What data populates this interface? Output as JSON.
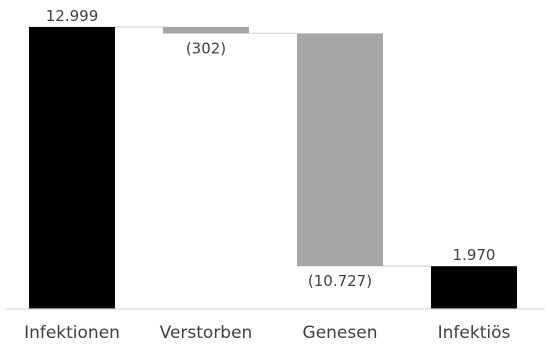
{
  "chart_data": {
    "type": "waterfall",
    "title": "",
    "xlabel": "",
    "ylabel": "",
    "categories": [
      "Infektionen",
      "Verstorben",
      "Genesen",
      "Infektiös"
    ],
    "values": [
      12999,
      -302,
      -10727,
      1970
    ],
    "kinds": [
      "total",
      "decrease",
      "decrease",
      "total"
    ],
    "data_labels": [
      "12.999",
      "(302)",
      "(10.727)",
      "1.970"
    ],
    "ylim": [
      0,
      13500
    ],
    "grid": false,
    "legend": "none",
    "colors": {
      "total": "#000000",
      "decrease": "#a6a6a6",
      "connector": "#d9d9d9",
      "axis": "#d9d9d9",
      "text": "#404040"
    }
  }
}
